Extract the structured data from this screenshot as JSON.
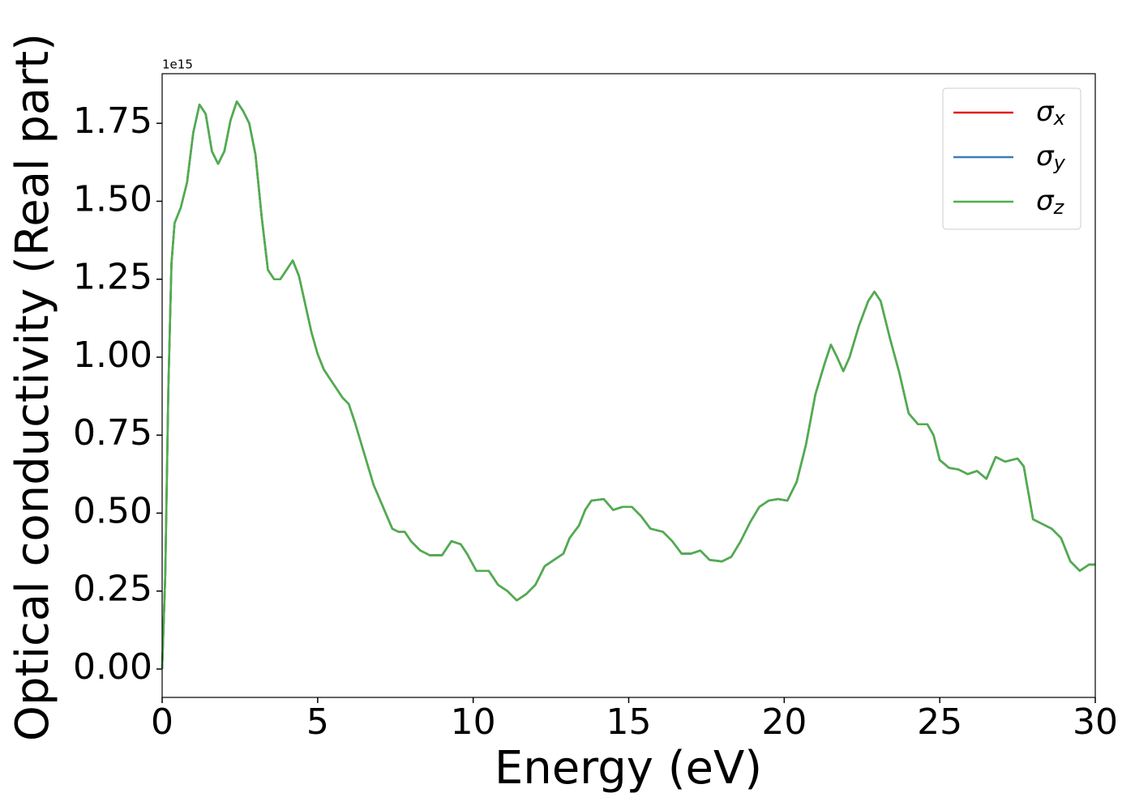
{
  "chart_data": {
    "type": "line",
    "xlabel": "Energy (eV)",
    "ylabel": "Optical conductivity (Real part)",
    "offset_label": "1e15",
    "x": [
      0,
      0.1,
      0.2,
      0.3,
      0.4,
      0.6,
      0.8,
      1.0,
      1.2,
      1.4,
      1.6,
      1.8,
      2.0,
      2.2,
      2.4,
      2.6,
      2.8,
      3.0,
      3.2,
      3.4,
      3.6,
      3.8,
      4.0,
      4.2,
      4.4,
      4.6,
      4.8,
      5.0,
      5.2,
      5.4,
      5.6,
      5.8,
      6.0,
      6.2,
      6.5,
      6.8,
      7.1,
      7.4,
      7.6,
      7.8,
      8.0,
      8.3,
      8.6,
      9.0,
      9.3,
      9.6,
      9.8,
      10.1,
      10.5,
      10.8,
      11.1,
      11.4,
      11.7,
      12.0,
      12.3,
      12.6,
      12.9,
      13.1,
      13.4,
      13.6,
      13.8,
      14.2,
      14.5,
      14.8,
      15.1,
      15.4,
      15.7,
      16.1,
      16.4,
      16.7,
      17.0,
      17.3,
      17.6,
      18.0,
      18.3,
      18.6,
      18.9,
      19.2,
      19.5,
      19.8,
      20.1,
      20.4,
      20.7,
      21.0,
      21.3,
      21.5,
      21.7,
      21.9,
      22.1,
      22.4,
      22.7,
      22.9,
      23.1,
      23.4,
      23.7,
      24.0,
      24.3,
      24.6,
      24.8,
      25.0,
      25.3,
      25.6,
      25.9,
      26.2,
      26.5,
      26.8,
      27.1,
      27.5,
      27.7,
      28.0,
      28.3,
      28.6,
      28.9,
      29.2,
      29.5,
      29.8,
      30.0
    ],
    "series": [
      {
        "name": "σx",
        "color": "#e41a1c",
        "values": [
          0,
          0.3,
          0.9,
          1.3,
          1.43,
          1.48,
          1.56,
          1.72,
          1.81,
          1.78,
          1.66,
          1.62,
          1.66,
          1.76,
          1.82,
          1.79,
          1.75,
          1.65,
          1.45,
          1.28,
          1.25,
          1.25,
          1.28,
          1.31,
          1.26,
          1.17,
          1.08,
          1.01,
          0.96,
          0.93,
          0.9,
          0.87,
          0.85,
          0.79,
          0.69,
          0.59,
          0.52,
          0.45,
          0.44,
          0.44,
          0.41,
          0.38,
          0.365,
          0.365,
          0.41,
          0.4,
          0.37,
          0.315,
          0.315,
          0.27,
          0.25,
          0.22,
          0.24,
          0.27,
          0.33,
          0.35,
          0.37,
          0.42,
          0.46,
          0.51,
          0.54,
          0.545,
          0.51,
          0.52,
          0.52,
          0.49,
          0.45,
          0.44,
          0.41,
          0.37,
          0.37,
          0.38,
          0.35,
          0.345,
          0.36,
          0.41,
          0.47,
          0.52,
          0.54,
          0.545,
          0.54,
          0.6,
          0.72,
          0.88,
          0.98,
          1.04,
          1.0,
          0.955,
          1.0,
          1.1,
          1.18,
          1.21,
          1.18,
          1.06,
          0.95,
          0.82,
          0.785,
          0.785,
          0.75,
          0.67,
          0.645,
          0.64,
          0.625,
          0.635,
          0.61,
          0.68,
          0.665,
          0.675,
          0.65,
          0.48,
          0.465,
          0.45,
          0.42,
          0.345,
          0.315,
          0.335,
          0.335
        ]
      },
      {
        "name": "σy",
        "color": "#377eb8",
        "values": [
          0,
          0.3,
          0.9,
          1.3,
          1.43,
          1.48,
          1.56,
          1.72,
          1.81,
          1.78,
          1.66,
          1.62,
          1.66,
          1.76,
          1.82,
          1.79,
          1.75,
          1.65,
          1.45,
          1.28,
          1.25,
          1.25,
          1.28,
          1.31,
          1.26,
          1.17,
          1.08,
          1.01,
          0.96,
          0.93,
          0.9,
          0.87,
          0.85,
          0.79,
          0.69,
          0.59,
          0.52,
          0.45,
          0.44,
          0.44,
          0.41,
          0.38,
          0.365,
          0.365,
          0.41,
          0.4,
          0.37,
          0.315,
          0.315,
          0.27,
          0.25,
          0.22,
          0.24,
          0.27,
          0.33,
          0.35,
          0.37,
          0.42,
          0.46,
          0.51,
          0.54,
          0.545,
          0.51,
          0.52,
          0.52,
          0.49,
          0.45,
          0.44,
          0.41,
          0.37,
          0.37,
          0.38,
          0.35,
          0.345,
          0.36,
          0.41,
          0.47,
          0.52,
          0.54,
          0.545,
          0.54,
          0.6,
          0.72,
          0.88,
          0.98,
          1.04,
          1.0,
          0.955,
          1.0,
          1.1,
          1.18,
          1.21,
          1.18,
          1.06,
          0.95,
          0.82,
          0.785,
          0.785,
          0.75,
          0.67,
          0.645,
          0.64,
          0.625,
          0.635,
          0.61,
          0.68,
          0.665,
          0.675,
          0.65,
          0.48,
          0.465,
          0.45,
          0.42,
          0.345,
          0.315,
          0.335,
          0.335
        ]
      },
      {
        "name": "σz",
        "color": "#4daf4a",
        "values": [
          0,
          0.3,
          0.9,
          1.3,
          1.43,
          1.48,
          1.56,
          1.72,
          1.81,
          1.78,
          1.66,
          1.62,
          1.66,
          1.76,
          1.82,
          1.79,
          1.75,
          1.65,
          1.45,
          1.28,
          1.25,
          1.25,
          1.28,
          1.31,
          1.26,
          1.17,
          1.08,
          1.01,
          0.96,
          0.93,
          0.9,
          0.87,
          0.85,
          0.79,
          0.69,
          0.59,
          0.52,
          0.45,
          0.44,
          0.44,
          0.41,
          0.38,
          0.365,
          0.365,
          0.41,
          0.4,
          0.37,
          0.315,
          0.315,
          0.27,
          0.25,
          0.22,
          0.24,
          0.27,
          0.33,
          0.35,
          0.37,
          0.42,
          0.46,
          0.51,
          0.54,
          0.545,
          0.51,
          0.52,
          0.52,
          0.49,
          0.45,
          0.44,
          0.41,
          0.37,
          0.37,
          0.38,
          0.35,
          0.345,
          0.36,
          0.41,
          0.47,
          0.52,
          0.54,
          0.545,
          0.54,
          0.6,
          0.72,
          0.88,
          0.98,
          1.04,
          1.0,
          0.955,
          1.0,
          1.1,
          1.18,
          1.21,
          1.18,
          1.06,
          0.95,
          0.82,
          0.785,
          0.785,
          0.75,
          0.67,
          0.645,
          0.64,
          0.625,
          0.635,
          0.61,
          0.68,
          0.665,
          0.675,
          0.65,
          0.48,
          0.465,
          0.45,
          0.42,
          0.345,
          0.315,
          0.335,
          0.335
        ]
      }
    ],
    "xlim": [
      0,
      30
    ],
    "xticks": [
      0,
      5,
      10,
      15,
      20,
      25,
      30
    ],
    "ylim": [
      -0.091,
      1.909
    ],
    "yticks": [
      {
        "value": 0,
        "label": "0.00"
      },
      0.25,
      {
        "value": 0.5,
        "label": "0.50"
      },
      0.75,
      {
        "value": 1,
        "label": "1.00"
      },
      1.25,
      {
        "value": 1.5,
        "label": "1.50"
      },
      1.75
    ],
    "legend": "upper right"
  }
}
